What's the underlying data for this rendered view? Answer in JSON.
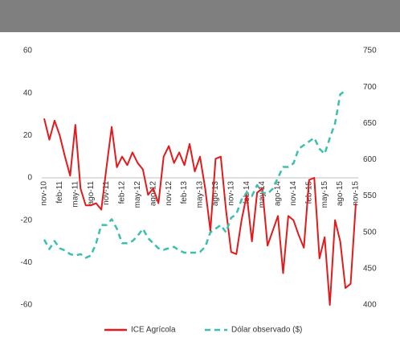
{
  "chart_data": {
    "type": "line",
    "categories": [
      "nov-10",
      null,
      null,
      "feb-11",
      null,
      null,
      "may-11",
      null,
      null,
      "ago-11",
      null,
      null,
      "nov-11",
      null,
      null,
      "feb-12",
      null,
      null,
      "may-12",
      null,
      null,
      "ago-12",
      null,
      null,
      "nov-12",
      null,
      null,
      "feb-13",
      null,
      null,
      "may-13",
      null,
      null,
      "ago-13",
      null,
      null,
      "nov-13",
      null,
      null,
      "feb-14",
      null,
      null,
      "may-14",
      null,
      null,
      "ago-14",
      null,
      null,
      "nov-14",
      null,
      null,
      "feb-15",
      null,
      null,
      "may-15",
      null,
      null,
      "ago-15",
      null,
      null,
      "nov-15"
    ],
    "series": [
      {
        "name": "ICE Agrícola",
        "color": "#e31a1c",
        "values": [
          28,
          18,
          27,
          20,
          10,
          1,
          25,
          -5,
          -13,
          -13,
          -12,
          -15,
          5,
          24,
          5,
          10,
          6,
          12,
          7,
          4,
          -8,
          -5,
          -12,
          10,
          15,
          7,
          12,
          6,
          16,
          3,
          10,
          -5,
          -25,
          9,
          10,
          -15,
          -35,
          -36,
          -20,
          -8,
          -30,
          -7,
          -5,
          -32,
          -25,
          -18,
          -45,
          -18,
          -20,
          -27,
          -33,
          -1,
          0,
          -38,
          -28,
          -60,
          -20,
          -30,
          -52,
          -50,
          -12
        ]
      },
      {
        "name": "Dólar observado ($)",
        "color": "#3cbfae",
        "axis": "y2",
        "values": [
          490,
          477,
          488,
          478,
          475,
          470,
          468,
          470,
          465,
          468,
          485,
          510,
          510,
          518,
          505,
          485,
          485,
          488,
          495,
          505,
          492,
          485,
          478,
          476,
          478,
          480,
          475,
          472,
          472,
          472,
          473,
          480,
          500,
          505,
          510,
          500,
          520,
          525,
          545,
          555,
          550,
          565,
          555,
          553,
          560,
          575,
          590,
          590,
          595,
          615,
          620,
          625,
          630,
          615,
          608,
          630,
          650,
          690,
          695,
          null,
          null
        ]
      }
    ],
    "ylim": [
      -60,
      60
    ],
    "yticks": [
      -60,
      -40,
      -20,
      0,
      20,
      40,
      60
    ],
    "y2lim": [
      400,
      750
    ],
    "y2ticks": [
      400,
      450,
      500,
      550,
      600,
      650,
      700,
      750
    ],
    "legend": "bottom"
  }
}
